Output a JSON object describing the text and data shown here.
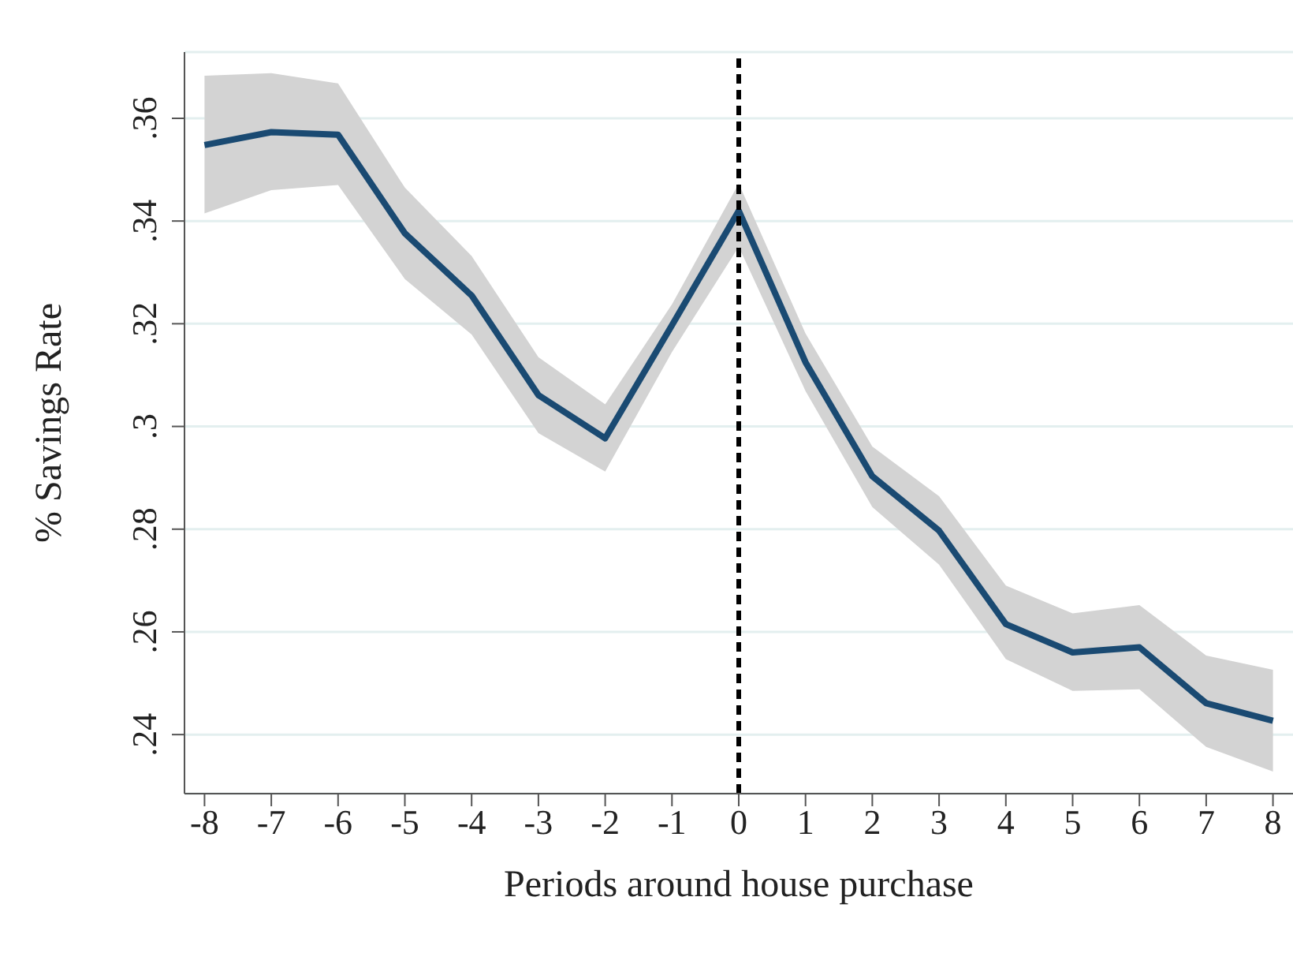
{
  "chart_data": {
    "type": "line",
    "xlabel": "Periods around house purchase",
    "ylabel": "% Savings Rate",
    "x": [
      -8,
      -7,
      -6,
      -5,
      -4,
      -3,
      -2,
      -1,
      0,
      1,
      2,
      3,
      4,
      5,
      6,
      7,
      8
    ],
    "series": [
      {
        "color": "#1a4a72",
        "values": [
          0.3548,
          0.3573,
          0.3568,
          0.3376,
          0.3255,
          0.3061,
          0.2977,
          0.3197,
          0.342,
          0.3125,
          0.2903,
          0.2797,
          0.2615,
          0.256,
          0.257,
          0.2461,
          0.2427
        ],
        "lower": [
          0.3415,
          0.346,
          0.347,
          0.3287,
          0.3179,
          0.2987,
          0.2912,
          0.3145,
          0.335,
          0.3069,
          0.2843,
          0.2731,
          0.2547,
          0.2485,
          0.2488,
          0.2376,
          0.2328
        ],
        "upper": [
          0.3683,
          0.3688,
          0.3668,
          0.3465,
          0.3332,
          0.3135,
          0.3043,
          0.3238,
          0.3473,
          0.3181,
          0.2961,
          0.2864,
          0.269,
          0.2636,
          0.2652,
          0.2554,
          0.2526
        ]
      }
    ],
    "xlim": [
      -8.3,
      8.3
    ],
    "xticks": [
      -8,
      -7,
      -6,
      -5,
      -4,
      -3,
      -2,
      -1,
      0,
      1,
      2,
      3,
      4,
      5,
      6,
      7,
      8
    ],
    "ylim": [
      0.2285,
      0.3729
    ],
    "yticks": [
      {
        "value": 0.24,
        "label": ".24"
      },
      {
        "value": 0.26,
        "label": ".26"
      },
      {
        "value": 0.28,
        "label": ".28"
      },
      {
        "value": 0.3,
        "label": ".3"
      },
      {
        "value": 0.32,
        "label": ".32"
      },
      {
        "value": 0.34,
        "label": ".34"
      },
      {
        "value": 0.36,
        "label": ".36"
      }
    ],
    "grid": "y",
    "legend": false,
    "marker": "none",
    "line_style": "solid",
    "ref_lines": [
      {
        "axis": "x",
        "value": 0,
        "color": "#000000",
        "line_style": "dashed"
      }
    ]
  }
}
